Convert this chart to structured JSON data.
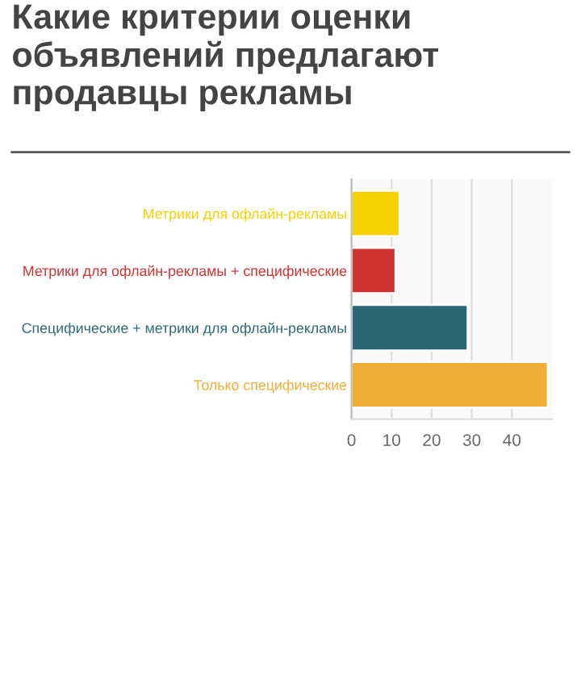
{
  "chart_data": {
    "type": "bar",
    "orientation": "horizontal",
    "title": "Какие критерии оценки объявлений предлагают продавцы рекламы",
    "categories": [
      "Метрики для офлайн-рекламы",
      "Метрики для офлайн-рекламы + специфические",
      "Специфические + метрики для офлайн-рекламы",
      "Только специфические"
    ],
    "values": [
      12,
      11,
      29,
      49
    ],
    "colors": [
      "#f5d000",
      "#d03432",
      "#2a6878",
      "#f0ae35"
    ],
    "xlim": [
      0,
      50
    ],
    "xticks": [
      0,
      10,
      20,
      30,
      40
    ],
    "grid": "x"
  }
}
